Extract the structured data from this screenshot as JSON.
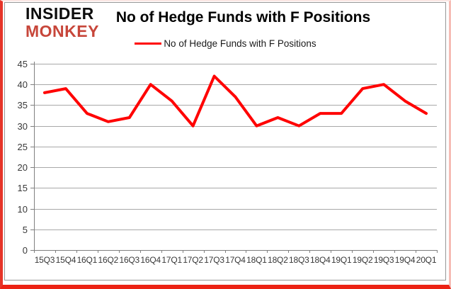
{
  "logo": {
    "line1": "INSIDER",
    "line2": "MONKEY"
  },
  "title": "No of Hedge Funds with F Positions",
  "legend": {
    "label": "No of Hedge Funds with F Positions"
  },
  "colors": {
    "series_red": "#ff0000",
    "logo_red": "#c7463a",
    "grid": "#a8a8a8",
    "axis": "#7f7f7f",
    "tick_text": "#383838",
    "frame_red": "#e63428",
    "frame_pink": "#f6bdb6"
  },
  "chart_data": {
    "type": "line",
    "title": "No of Hedge Funds with F Positions",
    "categories": [
      "15Q3",
      "15Q4",
      "16Q1",
      "16Q2",
      "16Q3",
      "16Q4",
      "17Q1",
      "17Q2",
      "17Q3",
      "17Q4",
      "18Q1",
      "18Q2",
      "18Q3",
      "18Q4",
      "19Q1",
      "19Q2",
      "19Q3",
      "19Q4",
      "20Q1"
    ],
    "series": [
      {
        "name": "No of Hedge Funds with F Positions",
        "color": "#ff0000",
        "values": [
          38,
          39,
          33,
          31,
          32,
          40,
          36,
          30,
          42,
          37,
          30,
          32,
          30,
          33,
          33,
          39,
          40,
          36,
          33
        ]
      }
    ],
    "xlabel": "",
    "ylabel": "",
    "ylim": [
      0,
      45
    ],
    "yticks": [
      0,
      5,
      10,
      15,
      20,
      25,
      30,
      35,
      40,
      45
    ],
    "grid": true,
    "legend_position": "top-center"
  }
}
